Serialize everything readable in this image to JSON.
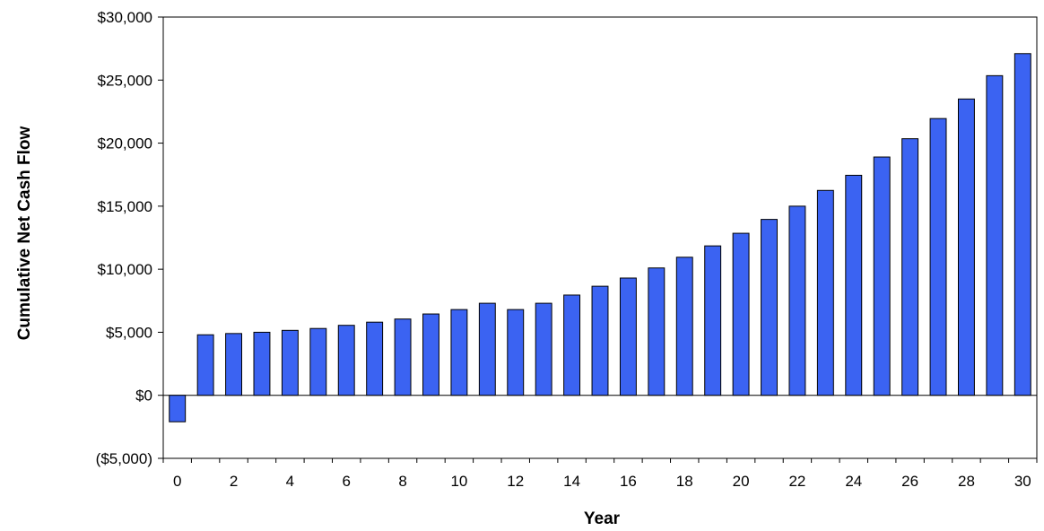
{
  "chart_data": {
    "type": "bar",
    "title": "",
    "xlabel": "Year",
    "ylabel": "Cumulative Net Cash Flow",
    "ylim": [
      -5000,
      30000
    ],
    "yticks": [
      -5000,
      0,
      5000,
      10000,
      15000,
      20000,
      25000,
      30000
    ],
    "ytick_labels": [
      "($5,000)",
      "$0",
      "$5,000",
      "$10,000",
      "$15,000",
      "$20,000",
      "$25,000",
      "$30,000"
    ],
    "xtick_labels": [
      "0",
      "2",
      "4",
      "6",
      "8",
      "10",
      "12",
      "14",
      "16",
      "18",
      "20",
      "22",
      "24",
      "26",
      "28",
      "30"
    ],
    "categories": [
      0,
      1,
      2,
      3,
      4,
      5,
      6,
      7,
      8,
      9,
      10,
      11,
      12,
      13,
      14,
      15,
      16,
      17,
      18,
      19,
      20,
      21,
      22,
      23,
      24,
      25,
      26,
      27,
      28,
      29,
      30
    ],
    "values": [
      -2100,
      4800,
      4900,
      5000,
      5150,
      5300,
      5550,
      5800,
      6050,
      6450,
      6800,
      7300,
      6800,
      7300,
      7950,
      8650,
      9300,
      10100,
      10950,
      11850,
      12850,
      13950,
      15000,
      16250,
      17450,
      18900,
      20350,
      21950,
      23500,
      25350,
      27100
    ],
    "bar_color": "#3b63f2",
    "grid": false,
    "legend": "none"
  }
}
